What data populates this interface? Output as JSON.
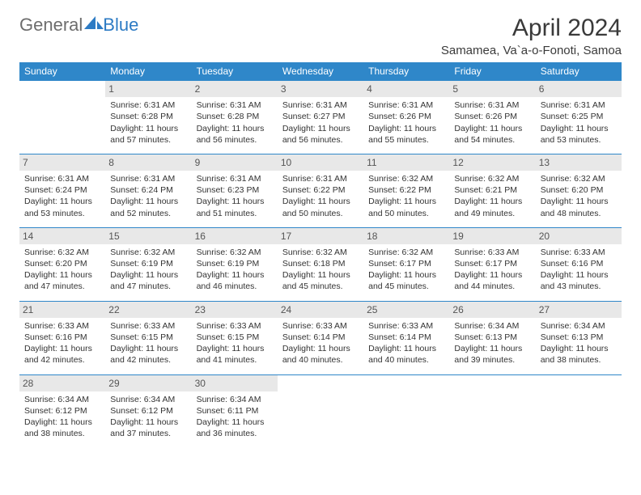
{
  "brand": {
    "general": "General",
    "blue": "Blue"
  },
  "page": {
    "title": "April 2024",
    "location": "Samamea, Va`a-o-Fonoti, Samoa"
  },
  "colors": {
    "header_bg": "#2f87c9",
    "header_text": "#ffffff",
    "daynum_bg": "#e8e8e8",
    "daynum_text": "#555555",
    "cell_border": "#2f87c9",
    "body_text": "#333333",
    "logo_gray": "#6d6d6d",
    "logo_blue": "#2d7bc4"
  },
  "day_headers": [
    "Sunday",
    "Monday",
    "Tuesday",
    "Wednesday",
    "Thursday",
    "Friday",
    "Saturday"
  ],
  "weeks": [
    [
      {
        "blank": true
      },
      {
        "n": "1",
        "sr": "Sunrise: 6:31 AM",
        "ss": "Sunset: 6:28 PM",
        "d1": "Daylight: 11 hours",
        "d2": "and 57 minutes."
      },
      {
        "n": "2",
        "sr": "Sunrise: 6:31 AM",
        "ss": "Sunset: 6:28 PM",
        "d1": "Daylight: 11 hours",
        "d2": "and 56 minutes."
      },
      {
        "n": "3",
        "sr": "Sunrise: 6:31 AM",
        "ss": "Sunset: 6:27 PM",
        "d1": "Daylight: 11 hours",
        "d2": "and 56 minutes."
      },
      {
        "n": "4",
        "sr": "Sunrise: 6:31 AM",
        "ss": "Sunset: 6:26 PM",
        "d1": "Daylight: 11 hours",
        "d2": "and 55 minutes."
      },
      {
        "n": "5",
        "sr": "Sunrise: 6:31 AM",
        "ss": "Sunset: 6:26 PM",
        "d1": "Daylight: 11 hours",
        "d2": "and 54 minutes."
      },
      {
        "n": "6",
        "sr": "Sunrise: 6:31 AM",
        "ss": "Sunset: 6:25 PM",
        "d1": "Daylight: 11 hours",
        "d2": "and 53 minutes."
      }
    ],
    [
      {
        "n": "7",
        "sr": "Sunrise: 6:31 AM",
        "ss": "Sunset: 6:24 PM",
        "d1": "Daylight: 11 hours",
        "d2": "and 53 minutes."
      },
      {
        "n": "8",
        "sr": "Sunrise: 6:31 AM",
        "ss": "Sunset: 6:24 PM",
        "d1": "Daylight: 11 hours",
        "d2": "and 52 minutes."
      },
      {
        "n": "9",
        "sr": "Sunrise: 6:31 AM",
        "ss": "Sunset: 6:23 PM",
        "d1": "Daylight: 11 hours",
        "d2": "and 51 minutes."
      },
      {
        "n": "10",
        "sr": "Sunrise: 6:31 AM",
        "ss": "Sunset: 6:22 PM",
        "d1": "Daylight: 11 hours",
        "d2": "and 50 minutes."
      },
      {
        "n": "11",
        "sr": "Sunrise: 6:32 AM",
        "ss": "Sunset: 6:22 PM",
        "d1": "Daylight: 11 hours",
        "d2": "and 50 minutes."
      },
      {
        "n": "12",
        "sr": "Sunrise: 6:32 AM",
        "ss": "Sunset: 6:21 PM",
        "d1": "Daylight: 11 hours",
        "d2": "and 49 minutes."
      },
      {
        "n": "13",
        "sr": "Sunrise: 6:32 AM",
        "ss": "Sunset: 6:20 PM",
        "d1": "Daylight: 11 hours",
        "d2": "and 48 minutes."
      }
    ],
    [
      {
        "n": "14",
        "sr": "Sunrise: 6:32 AM",
        "ss": "Sunset: 6:20 PM",
        "d1": "Daylight: 11 hours",
        "d2": "and 47 minutes."
      },
      {
        "n": "15",
        "sr": "Sunrise: 6:32 AM",
        "ss": "Sunset: 6:19 PM",
        "d1": "Daylight: 11 hours",
        "d2": "and 47 minutes."
      },
      {
        "n": "16",
        "sr": "Sunrise: 6:32 AM",
        "ss": "Sunset: 6:19 PM",
        "d1": "Daylight: 11 hours",
        "d2": "and 46 minutes."
      },
      {
        "n": "17",
        "sr": "Sunrise: 6:32 AM",
        "ss": "Sunset: 6:18 PM",
        "d1": "Daylight: 11 hours",
        "d2": "and 45 minutes."
      },
      {
        "n": "18",
        "sr": "Sunrise: 6:32 AM",
        "ss": "Sunset: 6:17 PM",
        "d1": "Daylight: 11 hours",
        "d2": "and 45 minutes."
      },
      {
        "n": "19",
        "sr": "Sunrise: 6:33 AM",
        "ss": "Sunset: 6:17 PM",
        "d1": "Daylight: 11 hours",
        "d2": "and 44 minutes."
      },
      {
        "n": "20",
        "sr": "Sunrise: 6:33 AM",
        "ss": "Sunset: 6:16 PM",
        "d1": "Daylight: 11 hours",
        "d2": "and 43 minutes."
      }
    ],
    [
      {
        "n": "21",
        "sr": "Sunrise: 6:33 AM",
        "ss": "Sunset: 6:16 PM",
        "d1": "Daylight: 11 hours",
        "d2": "and 42 minutes."
      },
      {
        "n": "22",
        "sr": "Sunrise: 6:33 AM",
        "ss": "Sunset: 6:15 PM",
        "d1": "Daylight: 11 hours",
        "d2": "and 42 minutes."
      },
      {
        "n": "23",
        "sr": "Sunrise: 6:33 AM",
        "ss": "Sunset: 6:15 PM",
        "d1": "Daylight: 11 hours",
        "d2": "and 41 minutes."
      },
      {
        "n": "24",
        "sr": "Sunrise: 6:33 AM",
        "ss": "Sunset: 6:14 PM",
        "d1": "Daylight: 11 hours",
        "d2": "and 40 minutes."
      },
      {
        "n": "25",
        "sr": "Sunrise: 6:33 AM",
        "ss": "Sunset: 6:14 PM",
        "d1": "Daylight: 11 hours",
        "d2": "and 40 minutes."
      },
      {
        "n": "26",
        "sr": "Sunrise: 6:34 AM",
        "ss": "Sunset: 6:13 PM",
        "d1": "Daylight: 11 hours",
        "d2": "and 39 minutes."
      },
      {
        "n": "27",
        "sr": "Sunrise: 6:34 AM",
        "ss": "Sunset: 6:13 PM",
        "d1": "Daylight: 11 hours",
        "d2": "and 38 minutes."
      }
    ],
    [
      {
        "n": "28",
        "sr": "Sunrise: 6:34 AM",
        "ss": "Sunset: 6:12 PM",
        "d1": "Daylight: 11 hours",
        "d2": "and 38 minutes."
      },
      {
        "n": "29",
        "sr": "Sunrise: 6:34 AM",
        "ss": "Sunset: 6:12 PM",
        "d1": "Daylight: 11 hours",
        "d2": "and 37 minutes."
      },
      {
        "n": "30",
        "sr": "Sunrise: 6:34 AM",
        "ss": "Sunset: 6:11 PM",
        "d1": "Daylight: 11 hours",
        "d2": "and 36 minutes."
      },
      {
        "blank": true
      },
      {
        "blank": true
      },
      {
        "blank": true
      },
      {
        "blank": true
      }
    ]
  ]
}
